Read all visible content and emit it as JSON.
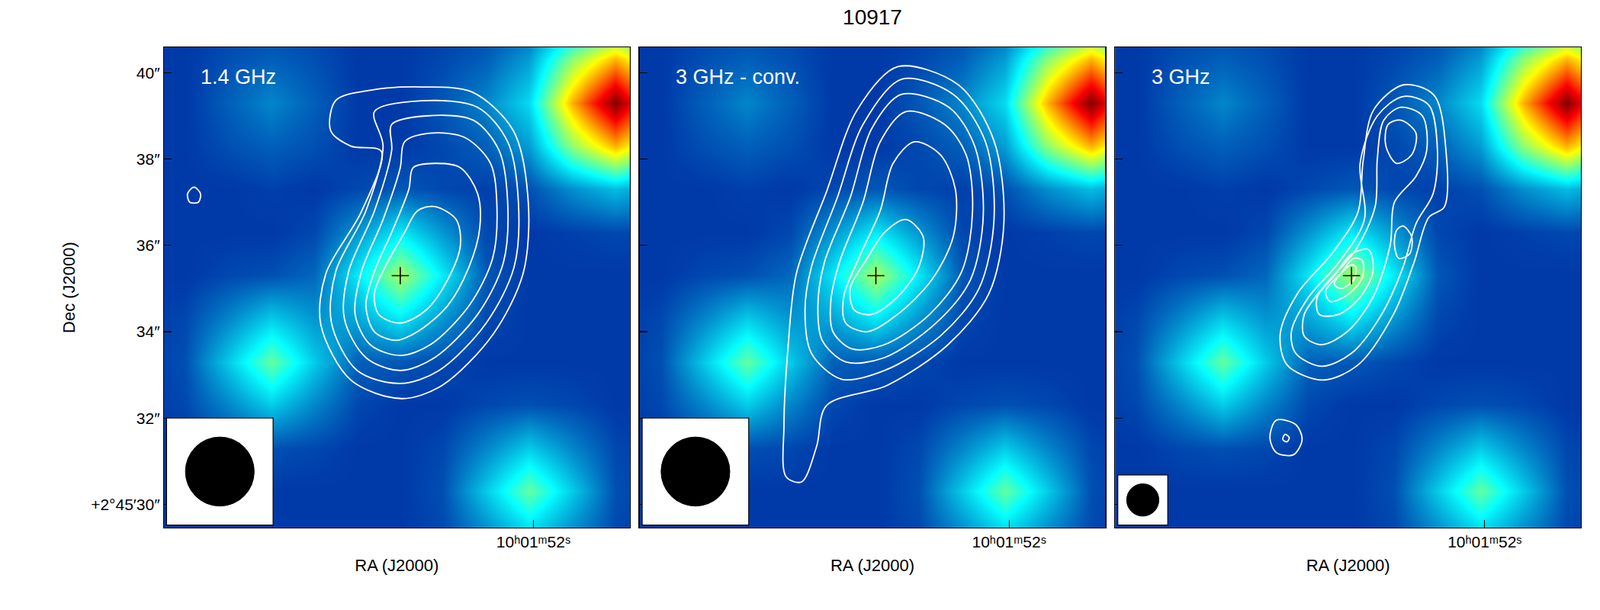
{
  "title": "10917",
  "image": {
    "color": "Jet",
    "zlim": [
      0,
      1
    ],
    "x": [
      -2.9,
      -1.9,
      -0.9,
      0.1,
      1.1,
      2.1,
      3.1,
      4.1,
      5.1,
      6.1,
      7.1,
      8.1,
      9.1
    ],
    "y": [
      29.3,
      30.3,
      31.3,
      32.3,
      33.3,
      34.3,
      35.3,
      36.3,
      37.3,
      38.3,
      39.3,
      40.3,
      41.3
    ],
    "z": [
      [
        0.12,
        0.14,
        0.22,
        0.31,
        0.22,
        0.14,
        0.12,
        0.12,
        0.12,
        0.12,
        0.12,
        0.12,
        0.12
      ],
      [
        0.12,
        0.15,
        0.31,
        0.47,
        0.31,
        0.15,
        0.12,
        0.12,
        0.12,
        0.12,
        0.12,
        0.12,
        0.12
      ],
      [
        0.12,
        0.14,
        0.22,
        0.31,
        0.22,
        0.14,
        0.12,
        0.12,
        0.14,
        0.15,
        0.14,
        0.12,
        0.12
      ],
      [
        0.12,
        0.12,
        0.14,
        0.15,
        0.14,
        0.12,
        0.12,
        0.14,
        0.22,
        0.31,
        0.22,
        0.14,
        0.12
      ],
      [
        0.12,
        0.12,
        0.12,
        0.12,
        0.12,
        0.14,
        0.16,
        0.17,
        0.31,
        0.47,
        0.31,
        0.15,
        0.12
      ],
      [
        0.12,
        0.12,
        0.12,
        0.12,
        0.14,
        0.24,
        0.35,
        0.26,
        0.24,
        0.31,
        0.22,
        0.14,
        0.12
      ],
      [
        0.12,
        0.12,
        0.12,
        0.12,
        0.16,
        0.35,
        0.54,
        0.35,
        0.18,
        0.15,
        0.14,
        0.12,
        0.12
      ],
      [
        0.13,
        0.14,
        0.13,
        0.12,
        0.14,
        0.24,
        0.35,
        0.24,
        0.14,
        0.12,
        0.12,
        0.12,
        0.12
      ],
      [
        0.23,
        0.29,
        0.23,
        0.15,
        0.13,
        0.14,
        0.16,
        0.14,
        0.12,
        0.13,
        0.12,
        0.12,
        0.12
      ],
      [
        0.51,
        0.7,
        0.51,
        0.25,
        0.17,
        0.14,
        0.12,
        0.12,
        0.15,
        0.17,
        0.15,
        0.12,
        0.12
      ],
      [
        0.7,
        1.0,
        0.7,
        0.33,
        0.22,
        0.16,
        0.12,
        0.12,
        0.17,
        0.22,
        0.17,
        0.12,
        0.12
      ],
      [
        0.51,
        0.7,
        0.51,
        0.25,
        0.17,
        0.14,
        0.12,
        0.12,
        0.15,
        0.17,
        0.15,
        0.12,
        0.12
      ],
      [
        0.23,
        0.29,
        0.23,
        0.15,
        0.13,
        0.12,
        0.12,
        0.12,
        0.13,
        0.13,
        0.13,
        0.12,
        0.12
      ]
    ]
  },
  "chart_data": [
    {
      "type": "contour",
      "label": "1.4 GHz",
      "xlabel": "RA (J2000)",
      "ylabel": "Dec (J2000)",
      "xlim": [
        8.6,
        -2.24
      ],
      "ylim": [
        29.46,
        40.59
      ],
      "xticks": [
        {
          "value": 0,
          "label": "10ʰ01ᵐ52ˢ"
        }
      ],
      "yticks": [
        {
          "value": 40,
          "label": "40″"
        },
        {
          "value": 38,
          "label": "38″"
        },
        {
          "value": 36,
          "label": "36″"
        },
        {
          "value": 34,
          "label": "34″"
        },
        {
          "value": 32,
          "label": "32″"
        },
        {
          "value": 30,
          "label": "+2°45′30″"
        }
      ],
      "color": "#ffffff",
      "beam": 1.6,
      "source": {
        "x": 3.1,
        "y": 35.3,
        "marker": "cross",
        "color": "#000000"
      },
      "contours": [
        {
          "x": [
            2.59,
            1.42,
            0.47,
            0.12,
            0.24,
            0.94,
            2.12,
            3.07,
            4.25,
            4.95,
            4.83,
            4.01,
            3.54,
            4.25,
            4.72,
            4.6,
            3.77
          ],
          "y": [
            39.67,
            39.55,
            38.66,
            37.0,
            35.35,
            33.94,
            32.76,
            32.45,
            32.88,
            34.17,
            35.35,
            36.77,
            38.18,
            38.3,
            38.66,
            39.36,
            39.6
          ]
        },
        {
          "x": [
            2.6,
            1.3,
            0.6,
            0.35,
            0.45,
            1.1,
            2.2,
            3.1,
            4.1,
            4.7,
            4.6,
            3.9,
            3.5,
            3.7
          ],
          "y": [
            39.35,
            39.2,
            38.4,
            37.0,
            35.5,
            34.2,
            33.1,
            32.8,
            33.1,
            34.2,
            35.4,
            36.8,
            38.3,
            39.1
          ]
        },
        {
          "x": [
            2.5,
            1.4,
            0.8,
            0.6,
            0.7,
            1.3,
            2.3,
            3.1,
            3.9,
            4.4,
            4.3,
            3.7,
            3.3,
            3.3
          ],
          "y": [
            39.0,
            38.9,
            38.2,
            37.0,
            35.6,
            34.4,
            33.4,
            33.1,
            33.4,
            34.3,
            35.4,
            36.8,
            38.2,
            38.8
          ]
        },
        {
          "x": [
            2.4,
            1.6,
            1.0,
            0.85,
            0.95,
            1.5,
            2.4,
            3.1,
            3.8,
            4.15,
            4.0,
            3.5,
            3.1,
            3.0
          ],
          "y": [
            38.6,
            38.5,
            37.9,
            36.9,
            35.7,
            34.6,
            33.7,
            33.45,
            33.7,
            34.4,
            35.4,
            36.6,
            37.8,
            38.4
          ]
        },
        {
          "x": [
            2.3,
            1.7,
            1.3,
            1.25,
            1.5,
            2.0,
            2.7,
            3.2,
            3.7,
            3.9,
            3.7,
            3.3,
            2.9,
            2.8
          ],
          "y": [
            37.9,
            37.8,
            37.2,
            36.4,
            35.5,
            34.6,
            34.0,
            33.8,
            34.0,
            34.6,
            35.4,
            36.3,
            37.3,
            37.8
          ]
        },
        {
          "x": [
            2.3,
            1.8,
            1.7,
            2.0,
            2.5,
            3.1,
            3.6,
            3.7,
            3.4,
            3.0,
            2.7
          ],
          "y": [
            36.9,
            36.6,
            36.0,
            35.2,
            34.5,
            34.2,
            34.4,
            34.9,
            35.6,
            36.3,
            36.8
          ]
        },
        {
          "x": [
            7.9,
            7.75,
            7.8,
            8.0,
            8.05
          ],
          "y": [
            37.35,
            37.2,
            37.0,
            37.0,
            37.2
          ]
        }
      ]
    },
    {
      "type": "contour",
      "label": "3 GHz - conv.",
      "xlabel": "RA (J2000)",
      "xlim": [
        8.6,
        -2.24
      ],
      "ylim": [
        29.46,
        40.59
      ],
      "xticks": [
        {
          "value": 0,
          "label": "10ʰ01ᵐ52ˢ"
        }
      ],
      "yticks": [
        30,
        32,
        34,
        36,
        38,
        40
      ],
      "tick_labels": "x",
      "color": "#ffffff",
      "beam": 1.6,
      "source": {
        "x": 3.1,
        "y": 35.3,
        "marker": "cross",
        "color": "#000000"
      },
      "contours": [
        {
          "x": [
            2.59,
            1.18,
            0.35,
            0.12,
            0.47,
            1.42,
            2.83,
            4.25,
            4.48,
            4.83,
            5.19,
            5.24,
            5.14,
            4.95,
            4.25,
            3.54
          ],
          "y": [
            40.14,
            39.72,
            38.42,
            36.53,
            34.88,
            33.7,
            32.76,
            32.29,
            31.34,
            30.52,
            30.64,
            31.82,
            33.7,
            35.35,
            37.24,
            39.13
          ]
        },
        {
          "x": [
            2.5,
            1.3,
            0.55,
            0.35,
            0.7,
            1.6,
            2.9,
            3.9,
            4.6,
            4.75,
            4.6,
            4.0,
            3.4
          ],
          "y": [
            39.85,
            39.5,
            38.4,
            36.6,
            35.0,
            33.9,
            33.1,
            32.9,
            33.5,
            34.5,
            35.5,
            37.1,
            38.8
          ]
        },
        {
          "x": [
            2.5,
            1.4,
            0.8,
            0.6,
            0.9,
            1.7,
            2.9,
            3.8,
            4.35,
            4.45,
            4.3,
            3.7,
            3.2
          ],
          "y": [
            39.5,
            39.2,
            38.3,
            36.7,
            35.2,
            34.2,
            33.4,
            33.3,
            33.8,
            34.6,
            35.6,
            37.1,
            38.7
          ]
        },
        {
          "x": [
            2.4,
            1.5,
            1.0,
            0.85,
            1.1,
            1.85,
            2.9,
            3.65,
            4.1,
            4.15,
            3.95,
            3.4,
            3.0
          ],
          "y": [
            39.1,
            38.8,
            38.1,
            36.8,
            35.4,
            34.4,
            33.7,
            33.6,
            34.0,
            34.7,
            35.6,
            37.0,
            38.4
          ]
        },
        {
          "x": [
            2.2,
            1.6,
            1.25,
            1.3,
            1.8,
            2.6,
            3.3,
            3.8,
            3.85,
            3.5,
            3.0,
            2.7
          ],
          "y": [
            38.4,
            38.1,
            37.3,
            36.2,
            35.2,
            34.4,
            34.0,
            34.2,
            34.8,
            35.7,
            36.8,
            37.9
          ]
        },
        {
          "x": [
            2.4,
            2.0,
            2.1,
            2.6,
            3.2,
            3.6,
            3.7,
            3.3,
            2.9
          ],
          "y": [
            36.6,
            36.2,
            35.5,
            34.8,
            34.4,
            34.5,
            35.0,
            35.7,
            36.3
          ]
        }
      ]
    },
    {
      "type": "contour",
      "label": "3 GHz",
      "xlabel": "RA (J2000)",
      "xlim": [
        8.6,
        -2.24
      ],
      "ylim": [
        29.46,
        40.59
      ],
      "xticks": [
        {
          "value": 0,
          "label": "10ʰ01ᵐ52ˢ"
        }
      ],
      "yticks": [
        30,
        32,
        34,
        36,
        38,
        40
      ],
      "tick_labels": "x",
      "color": "#ffffff",
      "beam": 0.75,
      "source": {
        "x": 3.1,
        "y": 35.3,
        "marker": "cross",
        "color": "#000000"
      },
      "contours": [
        {
          "x": [
            1.89,
            1.18,
            0.9,
            0.94,
            1.3,
            1.65,
            2.12,
            2.95,
            3.77,
            4.6,
            4.76,
            4.36,
            3.54,
            2.95,
            2.83,
            2.59
          ],
          "y": [
            39.72,
            39.48,
            38.18,
            36.89,
            36.65,
            35.59,
            34.41,
            33.23,
            32.88,
            33.23,
            33.94,
            34.88,
            35.83,
            36.77,
            37.95,
            39.13
          ]
        },
        {
          "x": [
            1.9,
            1.3,
            1.1,
            1.2,
            1.6,
            1.9,
            2.4,
            3.1,
            3.8,
            4.4,
            4.5,
            4.1,
            3.4,
            2.8,
            2.9,
            2.5
          ],
          "y": [
            39.45,
            39.25,
            38.2,
            37.2,
            36.5,
            35.5,
            34.4,
            33.5,
            33.2,
            33.5,
            34.0,
            34.8,
            35.6,
            36.6,
            37.9,
            39.0
          ]
        },
        {
          "x": [
            1.95,
            1.45,
            1.35,
            1.6,
            2.1,
            2.2,
            2.6,
            3.2,
            3.8,
            4.2,
            4.2,
            3.7,
            3.0,
            2.55,
            2.5,
            2.35
          ],
          "y": [
            39.2,
            39.0,
            38.2,
            37.6,
            37.0,
            36.0,
            34.8,
            34.0,
            33.7,
            33.9,
            34.4,
            35.1,
            35.9,
            36.9,
            38.0,
            38.9
          ]
        },
        {
          "x": [
            1.95,
            1.6,
            1.7,
            2.05,
            2.3,
            2.25
          ],
          "y": [
            38.9,
            38.6,
            38.1,
            37.9,
            38.3,
            38.8
          ]
        },
        {
          "x": [
            1.9,
            1.7,
            1.75,
            2.0,
            2.1,
            2.05
          ],
          "y": [
            36.45,
            36.2,
            35.8,
            35.7,
            36.0,
            36.35
          ]
        },
        {
          "x": [
            2.7,
            2.6,
            2.9,
            3.4,
            3.85,
            3.9,
            3.5,
            3.1
          ],
          "y": [
            35.9,
            35.4,
            34.8,
            34.4,
            34.4,
            34.8,
            35.3,
            35.8
          ]
        },
        {
          "x": [
            2.85,
            2.85,
            3.2,
            3.6,
            3.7,
            3.35,
            3.05
          ],
          "y": [
            35.65,
            35.25,
            34.85,
            34.7,
            34.95,
            35.35,
            35.7
          ]
        },
        {
          "x": [
            3.0,
            3.05,
            3.35,
            3.5,
            3.3,
            3.1
          ],
          "y": [
            35.5,
            35.2,
            35.0,
            35.1,
            35.4,
            35.55
          ]
        },
        {
          "x": [
            4.85,
            4.4,
            4.25,
            4.45,
            4.85,
            5.0
          ],
          "y": [
            31.95,
            31.85,
            31.5,
            31.15,
            31.2,
            31.55
          ]
        },
        {
          "x": [
            4.65,
            4.55,
            4.6,
            4.7
          ],
          "y": [
            31.62,
            31.55,
            31.45,
            31.5
          ]
        }
      ]
    }
  ]
}
